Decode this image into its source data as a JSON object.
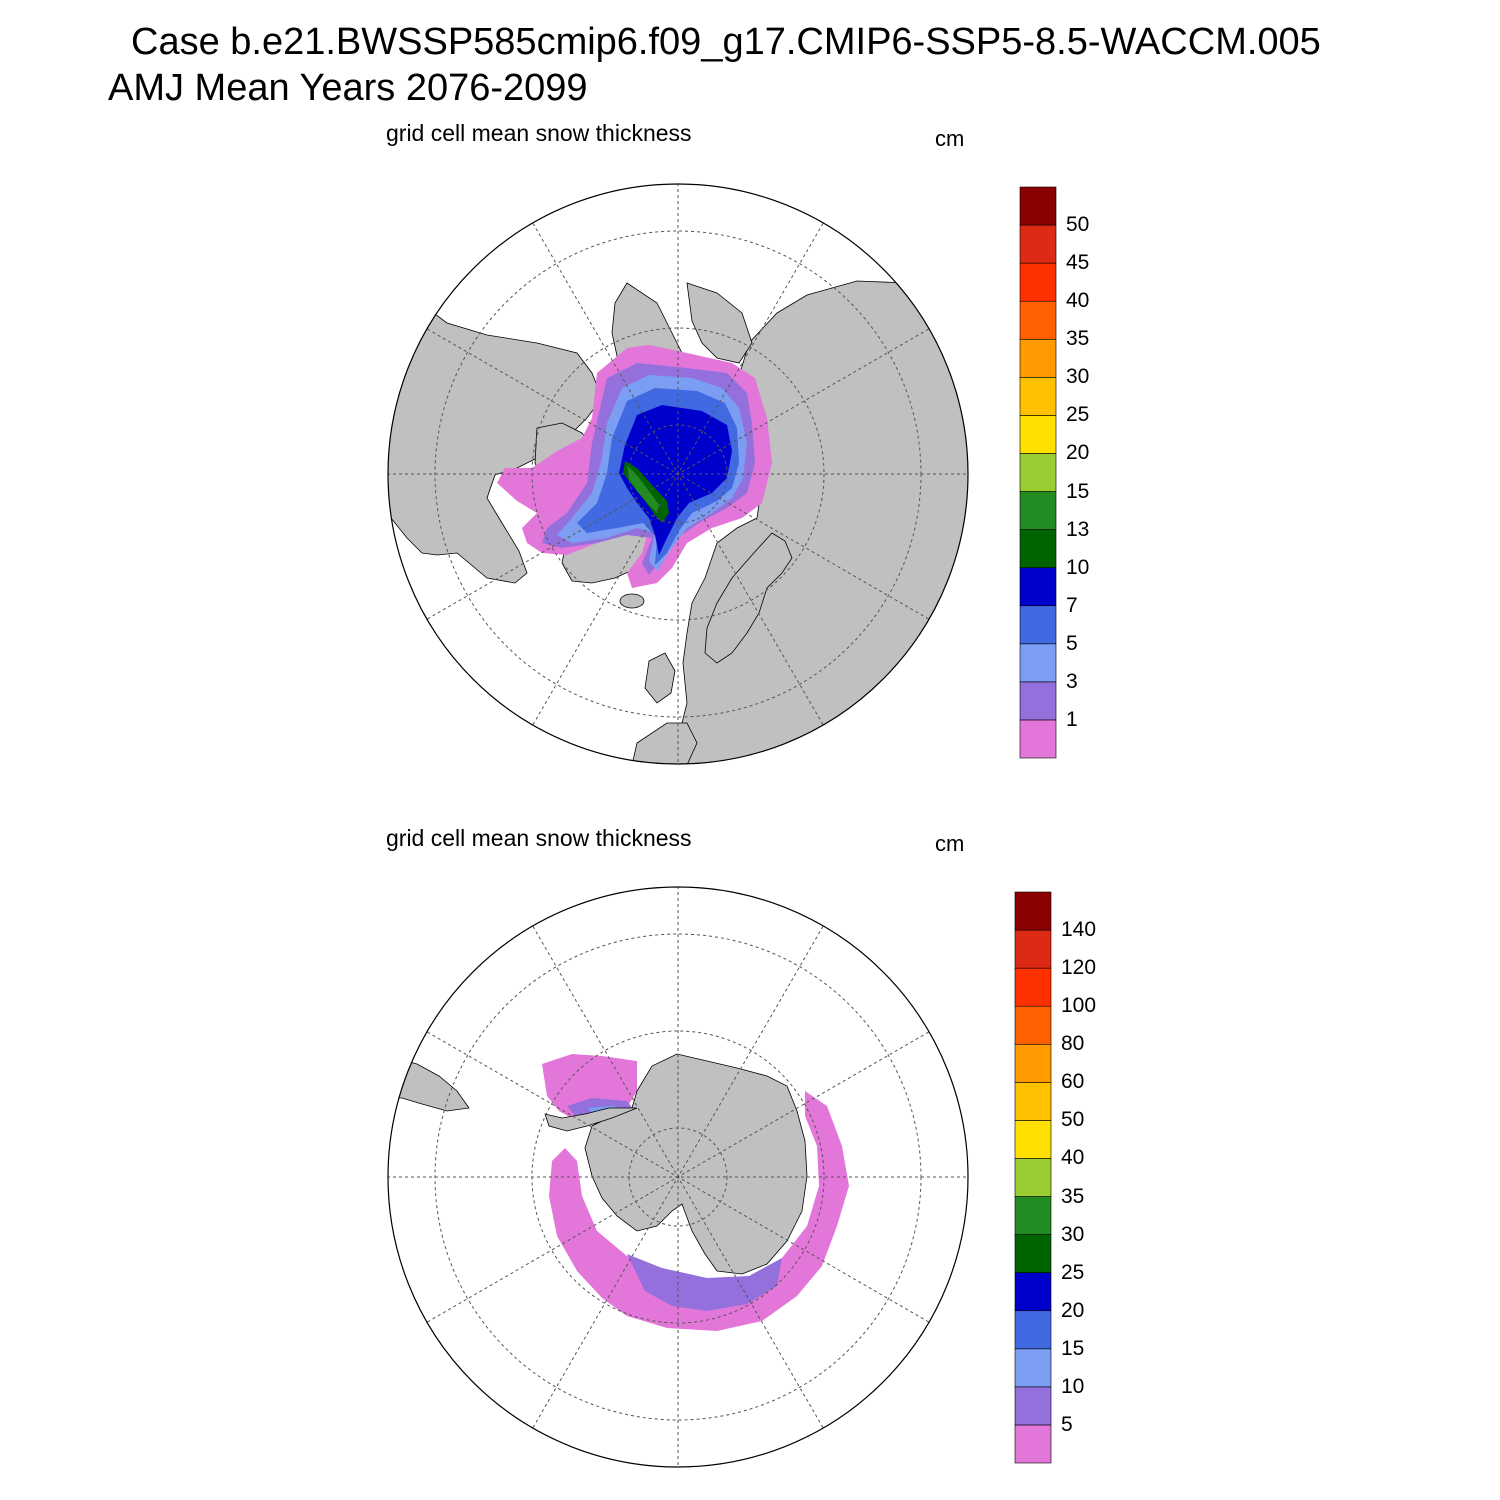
{
  "header": {
    "line1": "Case b.e21.BWSSP585cmip6.f09_g17.CMIP6-SSP5-8.5-WACCM.005",
    "line2": "AMJ Mean   Years 2076-2099"
  },
  "panels": [
    {
      "id": "arctic",
      "hemisphere": "north",
      "variable_label": "grid cell mean snow thickness",
      "units": "cm",
      "colorbar": {
        "levels": [
          "1",
          "3",
          "5",
          "7",
          "10",
          "13",
          "15",
          "20",
          "25",
          "30",
          "35",
          "40",
          "45",
          "50"
        ],
        "colors": [
          "#e377d9",
          "#9370db",
          "#7b9ef2",
          "#4169e1",
          "#0000cd",
          "#006400",
          "#228b22",
          "#9acd32",
          "#ffe000",
          "#ffc000",
          "#ff9a00",
          "#ff6000",
          "#ff3000",
          "#dc2a14",
          "#8b0000"
        ]
      }
    },
    {
      "id": "antarctic",
      "hemisphere": "south",
      "variable_label": "grid cell mean snow thickness",
      "units": "cm",
      "colorbar": {
        "levels": [
          "5",
          "10",
          "15",
          "20",
          "25",
          "30",
          "35",
          "40",
          "50",
          "60",
          "80",
          "100",
          "120",
          "140"
        ],
        "colors": [
          "#e377d9",
          "#9370db",
          "#7b9ef2",
          "#4169e1",
          "#0000cd",
          "#006400",
          "#228b22",
          "#9acd32",
          "#ffe000",
          "#ffc000",
          "#ff9a00",
          "#ff6000",
          "#ff3000",
          "#dc2a14",
          "#8b0000"
        ]
      }
    }
  ],
  "map_colors": {
    "land": "#c0c0c0",
    "ocean": "#ffffff",
    "grid": "#555555"
  }
}
